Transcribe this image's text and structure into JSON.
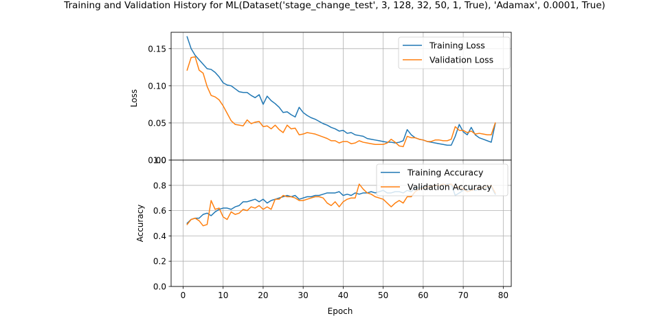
{
  "figure": {
    "title": "Training and Validation History for ML(Dataset('stage_change_test', 3, 128, 32, 50, 1, True), 'Adamax', 0.0001, True)"
  },
  "colors": {
    "training": "#1f77b4",
    "validation": "#ff7f0e",
    "grid": "#b0b0b0"
  },
  "chart_data": [
    {
      "type": "line",
      "title": "",
      "xlabel": "",
      "ylabel": "Loss",
      "xlim": [
        -3,
        82
      ],
      "ylim": [
        0.0,
        0.172
      ],
      "yticks": [
        0.0,
        0.05,
        0.1,
        0.15
      ],
      "ytick_labels": [
        "0.00",
        "0.05",
        "0.10",
        "0.15"
      ],
      "xticks": [
        0,
        10,
        20,
        30,
        40,
        50,
        60,
        70,
        80
      ],
      "xtick_labels": [],
      "grid": true,
      "legend": "upper right",
      "x": [
        1,
        2,
        3,
        4,
        5,
        6,
        7,
        8,
        9,
        10,
        11,
        12,
        13,
        14,
        15,
        16,
        17,
        18,
        19,
        20,
        21,
        22,
        23,
        24,
        25,
        26,
        27,
        28,
        29,
        30,
        31,
        32,
        33,
        34,
        35,
        36,
        37,
        38,
        39,
        40,
        41,
        42,
        43,
        44,
        45,
        46,
        47,
        48,
        49,
        50,
        51,
        52,
        53,
        54,
        55,
        56,
        57,
        58,
        59,
        60,
        61,
        62,
        63,
        64,
        65,
        66,
        67,
        68,
        69,
        70,
        71,
        72,
        73,
        74,
        75,
        76,
        77,
        78
      ],
      "series": [
        {
          "name": "Training Loss",
          "color": "#1f77b4",
          "values": [
            0.166,
            0.15,
            0.141,
            0.135,
            0.129,
            0.123,
            0.122,
            0.118,
            0.112,
            0.104,
            0.101,
            0.1,
            0.096,
            0.092,
            0.091,
            0.091,
            0.087,
            0.084,
            0.088,
            0.075,
            0.086,
            0.08,
            0.076,
            0.071,
            0.064,
            0.065,
            0.061,
            0.058,
            0.071,
            0.064,
            0.06,
            0.057,
            0.055,
            0.052,
            0.049,
            0.047,
            0.044,
            0.042,
            0.039,
            0.04,
            0.036,
            0.037,
            0.034,
            0.033,
            0.032,
            0.029,
            0.028,
            0.027,
            0.026,
            0.025,
            0.024,
            0.024,
            0.023,
            0.024,
            0.026,
            0.041,
            0.034,
            0.03,
            0.028,
            0.027,
            0.025,
            0.024,
            0.023,
            0.022,
            0.021,
            0.02,
            0.02,
            0.032,
            0.048,
            0.038,
            0.034,
            0.044,
            0.034,
            0.03,
            0.028,
            0.026,
            0.024,
            0.049
          ]
        },
        {
          "name": "Validation Loss",
          "color": "#ff7f0e",
          "values": [
            0.121,
            0.138,
            0.139,
            0.121,
            0.117,
            0.099,
            0.087,
            0.085,
            0.081,
            0.073,
            0.063,
            0.053,
            0.048,
            0.047,
            0.046,
            0.054,
            0.049,
            0.051,
            0.052,
            0.045,
            0.046,
            0.042,
            0.047,
            0.041,
            0.037,
            0.047,
            0.042,
            0.043,
            0.034,
            0.035,
            0.037,
            0.036,
            0.035,
            0.033,
            0.031,
            0.029,
            0.026,
            0.026,
            0.023,
            0.025,
            0.025,
            0.022,
            0.023,
            0.026,
            0.024,
            0.023,
            0.022,
            0.021,
            0.021,
            0.021,
            0.023,
            0.028,
            0.024,
            0.019,
            0.018,
            0.032,
            0.03,
            0.03,
            0.028,
            0.027,
            0.025,
            0.025,
            0.027,
            0.027,
            0.026,
            0.026,
            0.028,
            0.045,
            0.04,
            0.04,
            0.037,
            0.039,
            0.035,
            0.036,
            0.035,
            0.034,
            0.034,
            0.05
          ]
        }
      ]
    },
    {
      "type": "line",
      "title": "",
      "xlabel": "Epoch",
      "ylabel": "Accuracy",
      "xlim": [
        -3,
        82
      ],
      "ylim": [
        0.0,
        1.0
      ],
      "yticks": [
        0.0,
        0.2,
        0.4,
        0.6,
        0.8,
        1.0
      ],
      "ytick_labels": [
        "0.0",
        "0.2",
        "0.4",
        "0.6",
        "0.8",
        "1.0"
      ],
      "xticks": [
        0,
        10,
        20,
        30,
        40,
        50,
        60,
        70,
        80
      ],
      "xtick_labels": [
        "0",
        "10",
        "20",
        "30",
        "40",
        "50",
        "60",
        "70",
        "80"
      ],
      "grid": true,
      "legend": "upper right",
      "x": [
        1,
        2,
        3,
        4,
        5,
        6,
        7,
        8,
        9,
        10,
        11,
        12,
        13,
        14,
        15,
        16,
        17,
        18,
        19,
        20,
        21,
        22,
        23,
        24,
        25,
        26,
        27,
        28,
        29,
        30,
        31,
        32,
        33,
        34,
        35,
        36,
        37,
        38,
        39,
        40,
        41,
        42,
        43,
        44,
        45,
        46,
        47,
        48,
        49,
        50,
        51,
        52,
        53,
        54,
        55,
        56,
        57,
        58,
        59,
        60,
        61,
        62,
        63,
        64,
        65,
        66,
        67,
        68,
        69,
        70,
        71,
        72,
        73,
        74,
        75,
        76,
        77,
        78
      ],
      "series": [
        {
          "name": "Training Accuracy",
          "color": "#1f77b4",
          "values": [
            0.5,
            0.53,
            0.54,
            0.54,
            0.57,
            0.58,
            0.56,
            0.59,
            0.61,
            0.62,
            0.62,
            0.61,
            0.63,
            0.64,
            0.67,
            0.67,
            0.68,
            0.69,
            0.67,
            0.69,
            0.66,
            0.68,
            0.69,
            0.7,
            0.71,
            0.72,
            0.71,
            0.72,
            0.69,
            0.7,
            0.71,
            0.71,
            0.72,
            0.72,
            0.73,
            0.74,
            0.74,
            0.74,
            0.75,
            0.72,
            0.73,
            0.72,
            0.74,
            0.73,
            0.74,
            0.74,
            0.75,
            0.74,
            0.75,
            0.76,
            0.74,
            0.74,
            0.75,
            0.75,
            0.74,
            0.76,
            0.75,
            0.78,
            0.78,
            0.79,
            0.79,
            0.79,
            0.8,
            0.8,
            0.8,
            0.81,
            0.81,
            0.72,
            0.74,
            0.76,
            0.76,
            0.78,
            0.76,
            0.77,
            0.78,
            0.78,
            0.79,
            0.73
          ]
        },
        {
          "name": "Validation Accuracy",
          "color": "#ff7f0e",
          "values": [
            0.49,
            0.53,
            0.54,
            0.52,
            0.48,
            0.49,
            0.68,
            0.61,
            0.62,
            0.55,
            0.53,
            0.59,
            0.57,
            0.58,
            0.61,
            0.6,
            0.63,
            0.62,
            0.64,
            0.61,
            0.63,
            0.61,
            0.69,
            0.69,
            0.72,
            0.71,
            0.71,
            0.7,
            0.68,
            0.68,
            0.69,
            0.7,
            0.71,
            0.71,
            0.7,
            0.66,
            0.64,
            0.67,
            0.63,
            0.67,
            0.69,
            0.7,
            0.7,
            0.81,
            0.77,
            0.74,
            0.73,
            0.71,
            0.7,
            0.69,
            0.66,
            0.63,
            0.66,
            0.68,
            0.66,
            0.71,
            0.71,
            0.75,
            0.77,
            0.78,
            0.79,
            0.79,
            0.8,
            0.8,
            0.81,
            0.8,
            0.81,
            0.78,
            0.79,
            0.77,
            0.75,
            0.76,
            0.77,
            0.78,
            0.78,
            0.79,
            0.8,
            0.74
          ]
        }
      ]
    }
  ]
}
